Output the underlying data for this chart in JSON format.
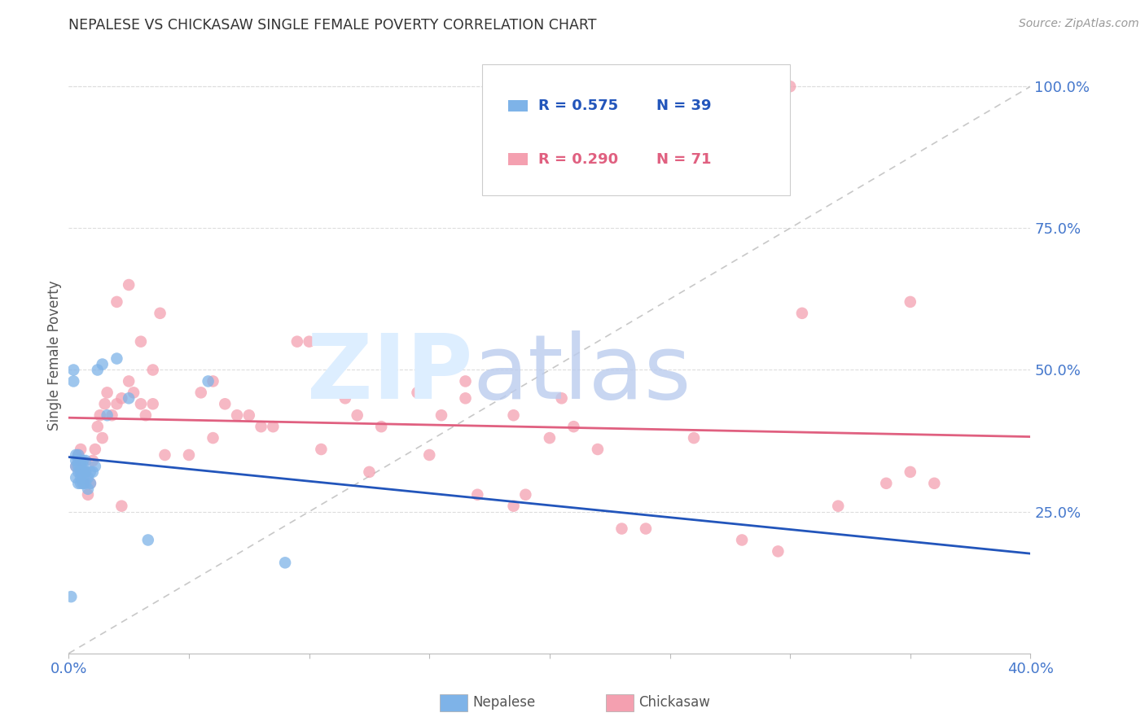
{
  "title": "NEPALESE VS CHICKASAW SINGLE FEMALE POVERTY CORRELATION CHART",
  "source": "Source: ZipAtlas.com",
  "ylabel": "Single Female Poverty",
  "xlim": [
    0.0,
    0.4
  ],
  "ylim": [
    0.0,
    1.05
  ],
  "nepalese_color": "#7EB3E8",
  "chickasaw_color": "#F4A0B0",
  "nepalese_line_color": "#2255BB",
  "chickasaw_line_color": "#E06080",
  "diagonal_color": "#C8C8C8",
  "legend_R_nepalese": "R = 0.575",
  "legend_N_nepalese": "N = 39",
  "legend_R_chickasaw": "R = 0.290",
  "legend_N_chickasaw": "N = 71",
  "background_color": "#FFFFFF",
  "grid_color": "#DDDDDD",
  "title_color": "#333333",
  "axis_label_color": "#555555",
  "right_tick_color": "#4477CC",
  "bottom_tick_color": "#4477CC",
  "nepalese_x": [
    0.001,
    0.002,
    0.002,
    0.003,
    0.003,
    0.003,
    0.003,
    0.004,
    0.004,
    0.004,
    0.004,
    0.004,
    0.005,
    0.005,
    0.005,
    0.005,
    0.005,
    0.006,
    0.006,
    0.006,
    0.006,
    0.006,
    0.007,
    0.007,
    0.007,
    0.008,
    0.008,
    0.009,
    0.009,
    0.01,
    0.011,
    0.012,
    0.014,
    0.016,
    0.02,
    0.025,
    0.033,
    0.058,
    0.09
  ],
  "nepalese_y": [
    0.1,
    0.5,
    0.48,
    0.31,
    0.33,
    0.35,
    0.34,
    0.3,
    0.32,
    0.34,
    0.35,
    0.33,
    0.3,
    0.31,
    0.33,
    0.32,
    0.34,
    0.3,
    0.31,
    0.33,
    0.32,
    0.34,
    0.3,
    0.32,
    0.34,
    0.29,
    0.31,
    0.3,
    0.32,
    0.32,
    0.33,
    0.5,
    0.51,
    0.42,
    0.52,
    0.45,
    0.2,
    0.48,
    0.16
  ],
  "chickasaw_x": [
    0.003,
    0.004,
    0.005,
    0.005,
    0.006,
    0.007,
    0.008,
    0.009,
    0.01,
    0.011,
    0.012,
    0.013,
    0.014,
    0.015,
    0.016,
    0.018,
    0.02,
    0.022,
    0.025,
    0.027,
    0.03,
    0.032,
    0.035,
    0.038,
    0.02,
    0.025,
    0.03,
    0.035,
    0.055,
    0.06,
    0.065,
    0.07,
    0.08,
    0.095,
    0.1,
    0.115,
    0.12,
    0.13,
    0.15,
    0.155,
    0.165,
    0.17,
    0.185,
    0.19,
    0.2,
    0.21,
    0.22,
    0.23,
    0.24,
    0.26,
    0.28,
    0.295,
    0.3,
    0.32,
    0.34,
    0.35,
    0.36,
    0.022,
    0.04,
    0.05,
    0.06,
    0.075,
    0.085,
    0.105,
    0.125,
    0.145,
    0.165,
    0.185,
    0.205,
    0.305,
    0.35
  ],
  "chickasaw_y": [
    0.33,
    0.35,
    0.34,
    0.36,
    0.3,
    0.32,
    0.28,
    0.3,
    0.34,
    0.36,
    0.4,
    0.42,
    0.38,
    0.44,
    0.46,
    0.42,
    0.44,
    0.45,
    0.48,
    0.46,
    0.44,
    0.42,
    0.44,
    0.6,
    0.62,
    0.65,
    0.55,
    0.5,
    0.46,
    0.48,
    0.44,
    0.42,
    0.4,
    0.55,
    0.55,
    0.45,
    0.42,
    0.4,
    0.35,
    0.42,
    0.45,
    0.28,
    0.26,
    0.28,
    0.38,
    0.4,
    0.36,
    0.22,
    0.22,
    0.38,
    0.2,
    0.18,
    1.0,
    0.26,
    0.3,
    0.32,
    0.3,
    0.26,
    0.35,
    0.35,
    0.38,
    0.42,
    0.4,
    0.36,
    0.32,
    0.46,
    0.48,
    0.42,
    0.45,
    0.6,
    0.62
  ]
}
